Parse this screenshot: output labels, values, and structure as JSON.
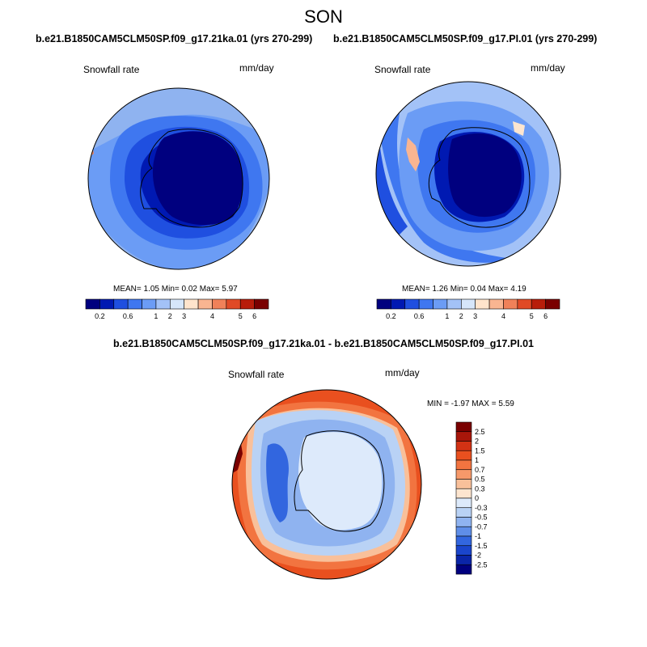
{
  "season": "SON",
  "panels": [
    {
      "title": "b.e21.B1850CAM5CLM50SP.f09_g17.21ka.01 (yrs 270-299)",
      "variable": "Snowfall rate",
      "units": "mm/day",
      "mean": "1.05",
      "min": "0.02",
      "max": "5.97"
    },
    {
      "title": "b.e21.B1850CAM5CLM50SP.f09_g17.PI.01 (yrs 270-299)",
      "variable": "Snowfall rate",
      "units": "mm/day",
      "mean": "1.26",
      "min": "0.04",
      "max": "4.19"
    }
  ],
  "stat_labels": {
    "mean": "MEAN=",
    "min": "Min=",
    "max": "Max="
  },
  "diff_panel": {
    "title": "b.e21.B1850CAM5CLM50SP.f09_g17.21ka.01 - b.e21.B1850CAM5CLM50SP.f09_g17.PI.01",
    "variable": "Snowfall rate",
    "units": "mm/day",
    "minmax_text": "MIN = -1.97 MAX = 5.59"
  },
  "chart_data": [
    {
      "type": "heatmap",
      "projection": "south polar stereographic",
      "colorbar": {
        "orientation": "horizontal",
        "levels": [
          0.2,
          0.6,
          1,
          2,
          3,
          4,
          5,
          6
        ],
        "tick_labels": [
          "0.2",
          "0.6",
          "1",
          "2",
          "3",
          "4",
          "5",
          "6"
        ],
        "colors": [
          "#00007f",
          "#0019b2",
          "#1f4fe0",
          "#3f77f0",
          "#6b9cf5",
          "#a3c2f7",
          "#d6e6fa",
          "#ffe4cc",
          "#f9b591",
          "#f08159",
          "#e04a26",
          "#b81d0a",
          "#7a0000"
        ]
      }
    },
    {
      "type": "heatmap",
      "projection": "south polar stereographic",
      "colorbar": {
        "orientation": "horizontal",
        "levels": [
          0.2,
          0.6,
          1,
          2,
          3,
          4,
          5,
          6
        ],
        "tick_labels": [
          "0.2",
          "0.6",
          "1",
          "2",
          "3",
          "4",
          "5",
          "6"
        ],
        "colors": [
          "#00007f",
          "#0019b2",
          "#1f4fe0",
          "#3f77f0",
          "#6b9cf5",
          "#a3c2f7",
          "#d6e6fa",
          "#ffe4cc",
          "#f9b591",
          "#f08159",
          "#e04a26",
          "#b81d0a",
          "#7a0000"
        ]
      }
    },
    {
      "type": "heatmap",
      "projection": "south polar stereographic",
      "colorbar": {
        "orientation": "vertical",
        "levels": [
          2.5,
          2,
          1.5,
          1,
          0.7,
          0.5,
          0.3,
          0,
          -0.3,
          -0.5,
          -0.7,
          -1,
          -1.5,
          -2,
          -2.5
        ],
        "tick_labels": [
          "2.5",
          "2",
          "1.5",
          "1",
          "0.7",
          "0.5",
          "0.3",
          "0",
          "-0.3",
          "-0.5",
          "-0.7",
          "-1",
          "-1.5",
          "-2",
          "-2.5"
        ],
        "colors": [
          "#7a0000",
          "#a8160a",
          "#d23214",
          "#e9501f",
          "#f27440",
          "#f6996a",
          "#f9c09a",
          "#fde5cf",
          "#ddeafb",
          "#b9d2f5",
          "#8fb3f0",
          "#5f8ee8",
          "#3266df",
          "#1a45cc",
          "#0a25a8",
          "#00007f"
        ]
      }
    }
  ]
}
